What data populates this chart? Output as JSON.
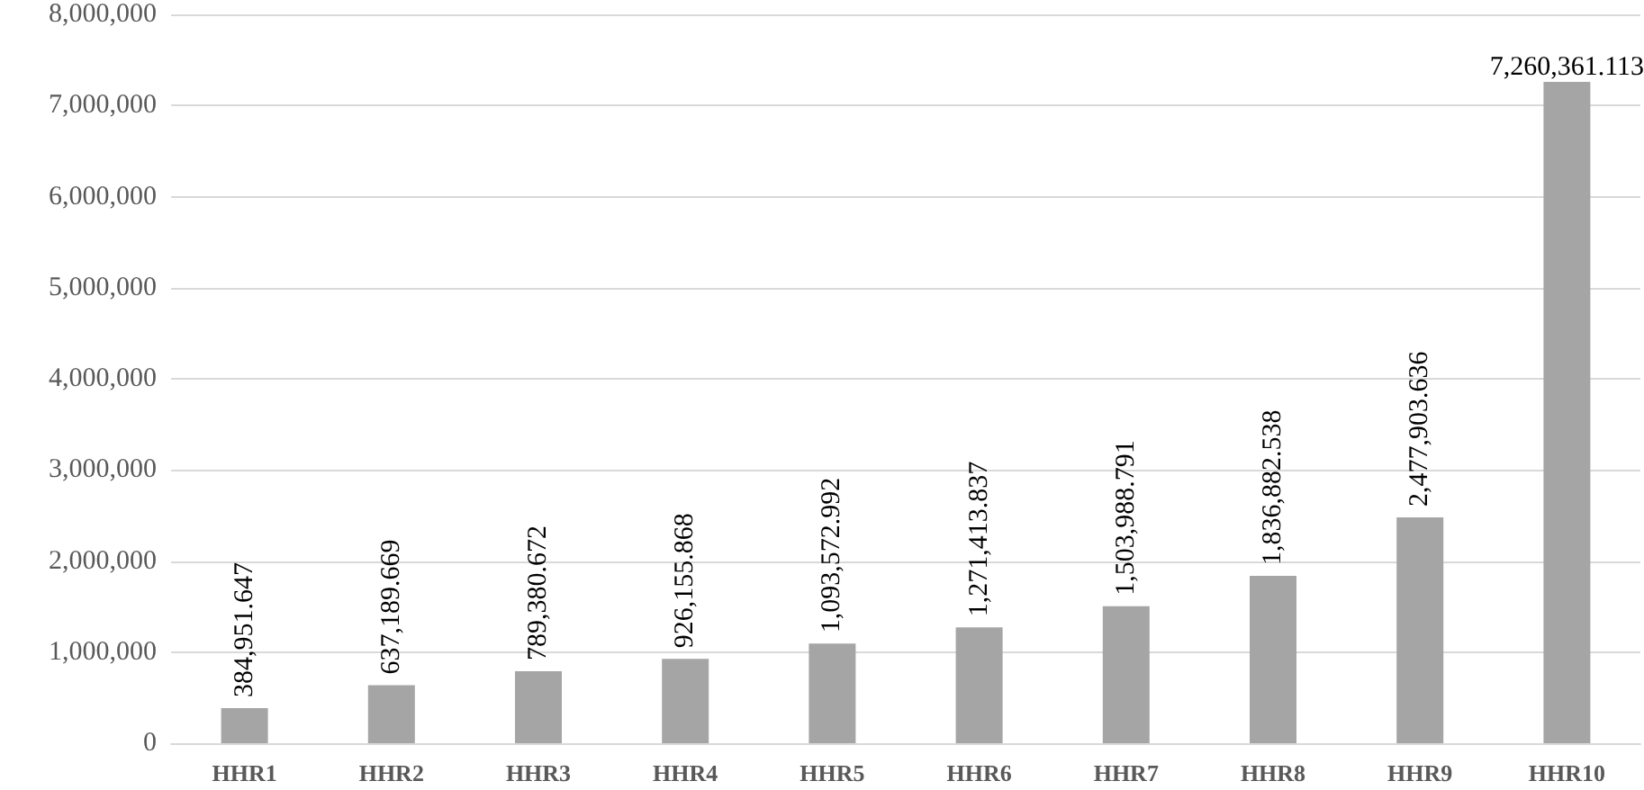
{
  "chart_data": {
    "type": "bar",
    "categories": [
      "HHR1",
      "HHR2",
      "HHR3",
      "HHR4",
      "HHR5",
      "HHR6",
      "HHR7",
      "HHR8",
      "HHR9",
      "HHR10"
    ],
    "values": [
      384951.647,
      637189.669,
      789380.672,
      926155.868,
      1093572.992,
      1271413.837,
      1503988.791,
      1836882.538,
      2477903.636,
      7260361.113
    ],
    "value_labels": [
      "384,951.647",
      "637,189.669",
      "789,380.672",
      "926,155.868",
      "1,093,572.992",
      "1,271,413.837",
      "1,503,988.791",
      "1,836,882.538",
      "2,477,903.636",
      "7,260,361.113"
    ],
    "color": "#a5a5a5",
    "ylim": [
      0,
      8000000
    ],
    "yticks": [
      0,
      {
        "value": 1000000,
        "label": "1,000,000"
      },
      {
        "value": 2000000,
        "label": "2,000,000"
      },
      {
        "value": 3000000,
        "label": "3,000,000"
      },
      {
        "value": 4000000,
        "label": "4,000,000"
      },
      {
        "value": 5000000,
        "label": "5,000,000"
      },
      {
        "value": 6000000,
        "label": "6,000,000"
      },
      {
        "value": 7000000,
        "label": "7,000,000"
      },
      {
        "value": 8000000,
        "label": "8,000,000"
      }
    ],
    "grid": "y"
  }
}
